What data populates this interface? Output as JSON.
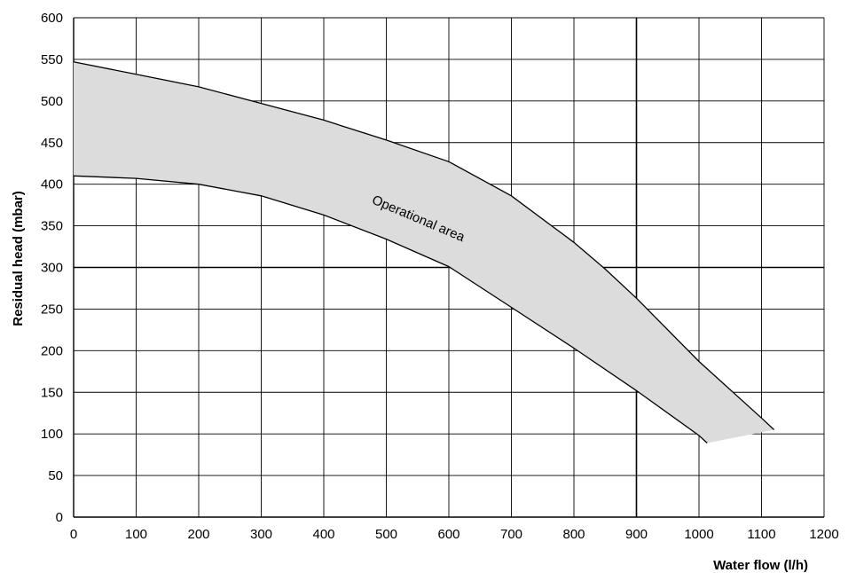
{
  "chart_data": {
    "type": "area",
    "title": "",
    "xlabel": "Water flow (l/h)",
    "ylabel": "Residual head (mbar)",
    "xlim": [
      0,
      1200
    ],
    "ylim": [
      0,
      600
    ],
    "x_ticks": [
      0,
      100,
      200,
      300,
      400,
      500,
      600,
      700,
      800,
      900,
      1000,
      1100,
      1200
    ],
    "y_ticks": [
      0,
      50,
      100,
      150,
      200,
      250,
      300,
      350,
      400,
      450,
      500,
      550,
      600
    ],
    "grid": true,
    "fill_color": "#dcdcdc",
    "line_color": "#000000",
    "series": [
      {
        "role": "upper-boundary",
        "x": [
          0,
          100,
          200,
          300,
          400,
          500,
          600,
          700,
          800,
          850,
          900,
          1000,
          1100,
          1120
        ],
        "y": [
          547,
          532,
          517,
          497,
          477,
          453,
          427,
          386,
          330,
          298,
          263,
          187,
          119,
          105
        ]
      },
      {
        "role": "lower-boundary",
        "x": [
          0,
          100,
          200,
          300,
          400,
          500,
          600,
          700,
          800,
          900,
          1000,
          1013
        ],
        "y": [
          410,
          407,
          400,
          386,
          363,
          334,
          301,
          252,
          203,
          152,
          98,
          89
        ]
      }
    ],
    "annotations": [
      {
        "text": "Operational area",
        "x": 665,
        "y": 320,
        "rotation_deg": 23
      }
    ]
  }
}
